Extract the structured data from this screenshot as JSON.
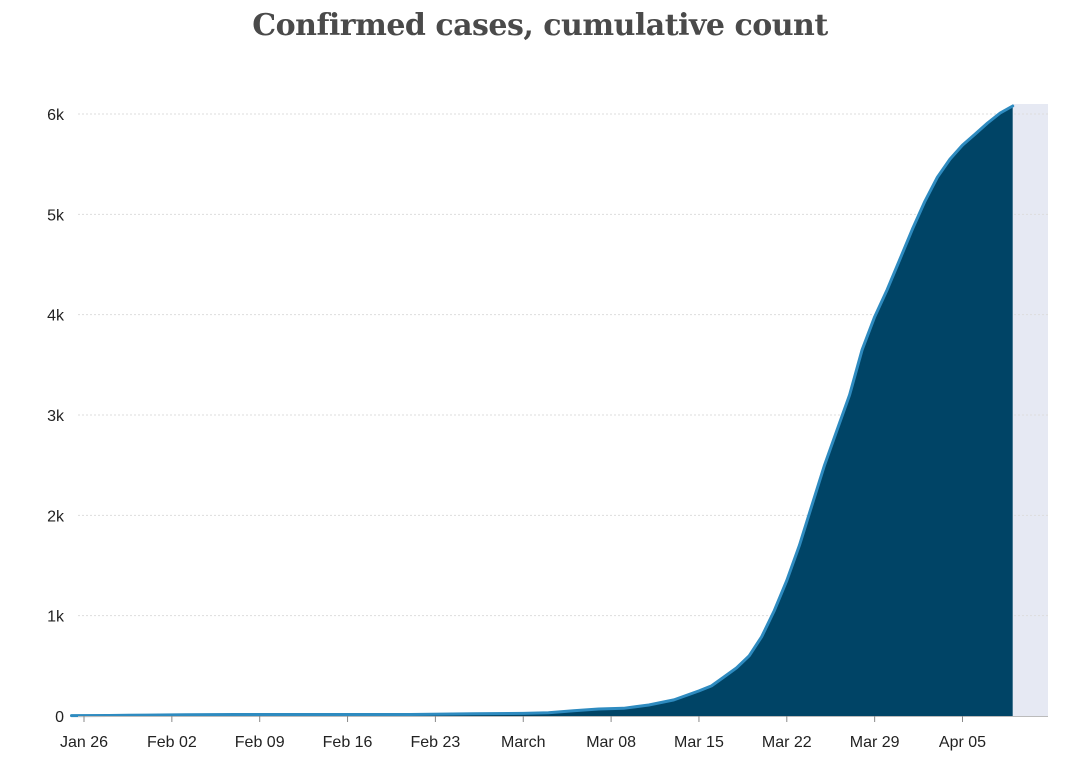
{
  "chart_data": {
    "type": "area",
    "title": "Confirmed cases, cumulative count",
    "xlabel": "",
    "ylabel": "",
    "x_ticks": [
      {
        "label": "Jan 26",
        "day": 0
      },
      {
        "label": "Feb 02",
        "day": 7
      },
      {
        "label": "Feb 09",
        "day": 14
      },
      {
        "label": "Feb 16",
        "day": 21
      },
      {
        "label": "Feb 23",
        "day": 28
      },
      {
        "label": "March",
        "day": 35
      },
      {
        "label": "Mar 08",
        "day": 42
      },
      {
        "label": "Mar 15",
        "day": 49
      },
      {
        "label": "Mar 22",
        "day": 56
      },
      {
        "label": "Mar 29",
        "day": 63
      },
      {
        "label": "Apr 05",
        "day": 70
      }
    ],
    "y_ticks": [
      {
        "label": "0",
        "value": 0
      },
      {
        "label": "1k",
        "value": 1000
      },
      {
        "label": "2k",
        "value": 2000
      },
      {
        "label": "3k",
        "value": 3000
      },
      {
        "label": "4k",
        "value": 4000
      },
      {
        "label": "5k",
        "value": 5000
      },
      {
        "label": "6k",
        "value": 6000
      }
    ],
    "ylim": [
      0,
      6000
    ],
    "xlim": [
      "Jan 26",
      "Apr 10"
    ],
    "grid": true,
    "shaded_region": {
      "from": "Apr 09",
      "to": "Apr 10"
    },
    "series": [
      {
        "points": [
          {
            "x": "Jan 25",
            "y": 4
          },
          {
            "x": "Jan 28",
            "y": 5
          },
          {
            "x": "Jan 31",
            "y": 9
          },
          {
            "x": "Feb 03",
            "y": 12
          },
          {
            "x": "Feb 07",
            "y": 15
          },
          {
            "x": "Feb 14",
            "y": 15
          },
          {
            "x": "Feb 21",
            "y": 15
          },
          {
            "x": "Feb 26",
            "y": 22
          },
          {
            "x": "Mar 01",
            "y": 26
          },
          {
            "x": "Mar 03",
            "y": 33
          },
          {
            "x": "Mar 05",
            "y": 52
          },
          {
            "x": "Mar 07",
            "y": 70
          },
          {
            "x": "Mar 09",
            "y": 77
          },
          {
            "x": "Mar 11",
            "y": 110
          },
          {
            "x": "Mar 13",
            "y": 160
          },
          {
            "x": "Mar 15",
            "y": 250
          },
          {
            "x": "Mar 16",
            "y": 300
          },
          {
            "x": "Mar 17",
            "y": 390
          },
          {
            "x": "Mar 18",
            "y": 480
          },
          {
            "x": "Mar 19",
            "y": 600
          },
          {
            "x": "Mar 20",
            "y": 790
          },
          {
            "x": "Mar 21",
            "y": 1050
          },
          {
            "x": "Mar 22",
            "y": 1350
          },
          {
            "x": "Mar 23",
            "y": 1700
          },
          {
            "x": "Mar 24",
            "y": 2100
          },
          {
            "x": "Mar 25",
            "y": 2500
          },
          {
            "x": "Mar 26",
            "y": 2850
          },
          {
            "x": "Mar 27",
            "y": 3200
          },
          {
            "x": "Mar 28",
            "y": 3650
          },
          {
            "x": "Mar 29",
            "y": 3980
          },
          {
            "x": "Mar 30",
            "y": 4250
          },
          {
            "x": "Mar 31",
            "y": 4550
          },
          {
            "x": "Apr 01",
            "y": 4850
          },
          {
            "x": "Apr 02",
            "y": 5130
          },
          {
            "x": "Apr 03",
            "y": 5370
          },
          {
            "x": "Apr 04",
            "y": 5550
          },
          {
            "x": "Apr 05",
            "y": 5690
          },
          {
            "x": "Apr 06",
            "y": 5800
          },
          {
            "x": "Apr 07",
            "y": 5910
          },
          {
            "x": "Apr 08",
            "y": 6010
          },
          {
            "x": "Apr 09",
            "y": 6080
          }
        ]
      }
    ],
    "colors": {
      "area_fill": "#004466",
      "line": "#2e8bc0",
      "shade": "#e6e9f3",
      "grid": "#dddddd"
    }
  }
}
